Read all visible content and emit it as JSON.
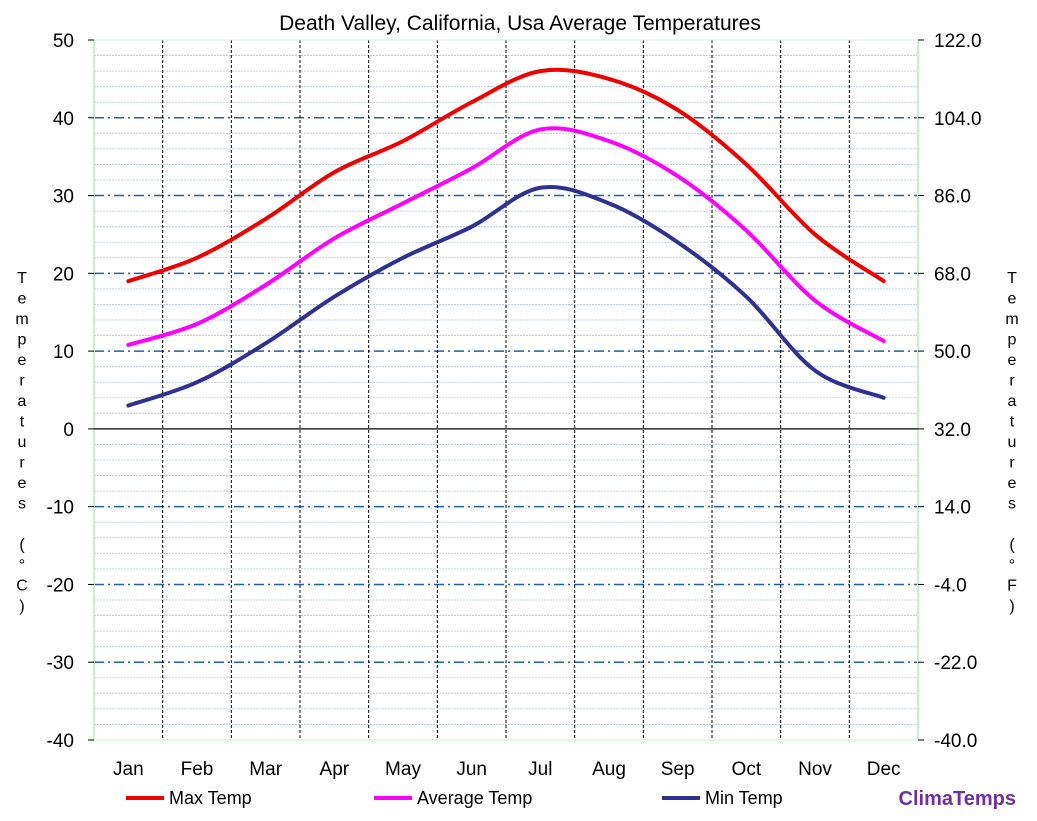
{
  "chart_data": {
    "type": "line",
    "title": "Death Valley, California, Usa Average Temperatures",
    "categories": [
      "Jan",
      "Feb",
      "Mar",
      "Apr",
      "May",
      "Jun",
      "Jul",
      "Aug",
      "Sep",
      "Oct",
      "Nov",
      "Dec"
    ],
    "series": [
      {
        "name": "Max Temp",
        "color": "#ee0000",
        "values": [
          19,
          22,
          27,
          33,
          37,
          42,
          46,
          45,
          41,
          34,
          25,
          19
        ]
      },
      {
        "name": "Average Temp",
        "color": "#ff00ff",
        "values": [
          10.8,
          13.5,
          18.5,
          24.5,
          29,
          33.5,
          38.5,
          37,
          32.5,
          25.5,
          16.5,
          11.3
        ]
      },
      {
        "name": "Min Temp",
        "color": "#2e3192",
        "values": [
          3,
          6,
          11,
          17,
          22,
          26,
          31,
          29,
          24,
          17,
          7.5,
          4
        ]
      }
    ],
    "ylabel_left": "Temperatures (°C)",
    "ylabel_right": "Temperatures (°F)",
    "ylim_left": [
      -40,
      50
    ],
    "yticks_left": [
      "50",
      "40",
      "30",
      "20",
      "10",
      "0",
      "-10",
      "-20",
      "-30",
      "-40"
    ],
    "yticks_right": [
      "122.0",
      "104.0",
      "86.0",
      "68.0",
      "50.0",
      "32.0",
      "14.0",
      "-4.0",
      "-22.0",
      "-40.0"
    ],
    "brand": "ClimaTemps"
  }
}
